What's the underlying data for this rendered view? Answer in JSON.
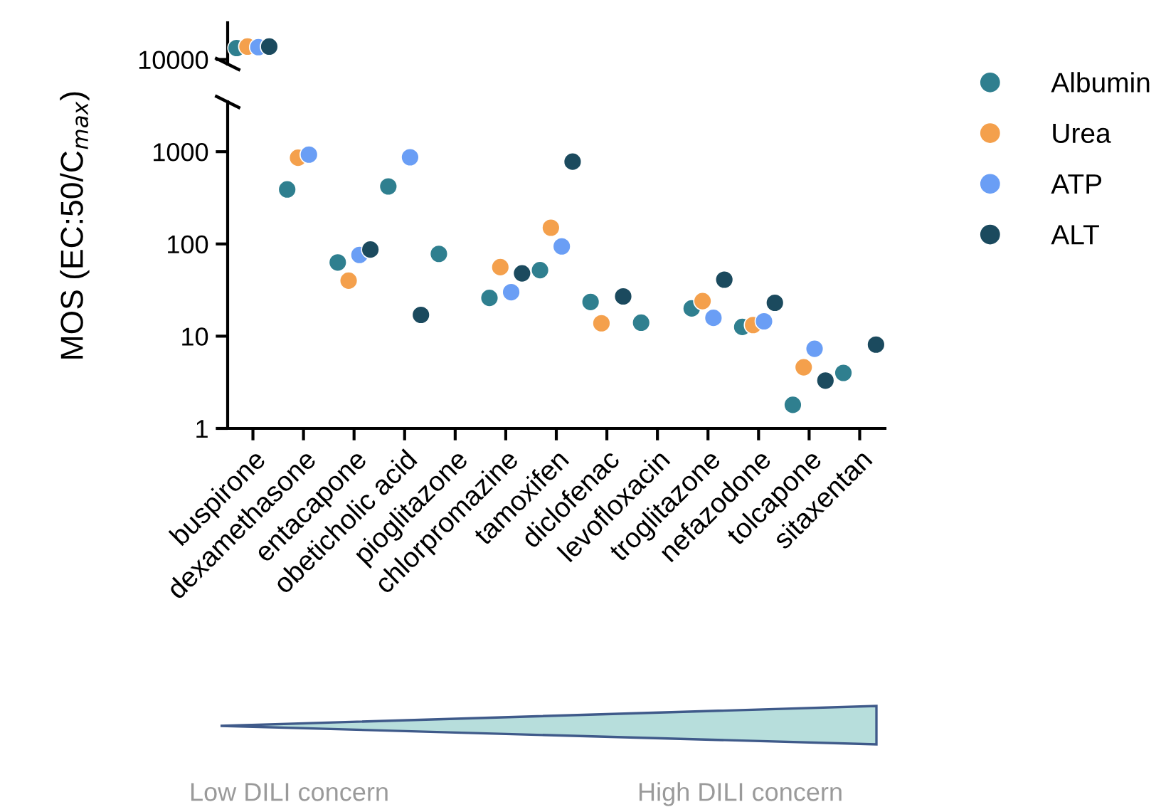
{
  "chart_data": {
    "type": "scatter",
    "log": true,
    "ylim": [
      1,
      25000
    ],
    "yticks": [
      1,
      10,
      100,
      1000,
      10000
    ],
    "ylabel": "MOS (EC:50/C$_{max}$)",
    "legend": "top right",
    "categories": [
      "buspirone",
      "dexamethasone",
      "entacapone",
      "obeticholic acid",
      "pioglitazone",
      "chlorpromazine",
      "tamoxifen",
      "diclofenac",
      "levofloxacin",
      "troglitazone",
      "nefazodone",
      "tolcapone",
      "sitaxentan"
    ],
    "series": [
      {
        "name": "Albumin",
        "color": "#2f7f8f",
        "values": [
          13300,
          390,
          63,
          420,
          78,
          26,
          52,
          23.5,
          14,
          20,
          12.6,
          1.8,
          4.0
        ]
      },
      {
        "name": "Urea",
        "color": "#f4a04c",
        "values": [
          13800,
          860,
          40,
          null,
          null,
          56,
          150,
          13.8,
          null,
          24,
          13.2,
          4.6,
          null
        ]
      },
      {
        "name": "ATP",
        "color": "#6a9ef5",
        "values": [
          13600,
          930,
          76,
          870,
          null,
          30,
          94,
          null,
          null,
          15.8,
          14.5,
          7.3,
          null
        ]
      },
      {
        "name": "ALT",
        "color": "#1b4a5e",
        "values": [
          13800,
          null,
          87,
          17,
          null,
          48,
          780,
          27,
          null,
          41,
          23,
          3.3,
          8.1
        ]
      }
    ],
    "annotations": [
      "Low DILI concern",
      "High DILI concern"
    ]
  }
}
